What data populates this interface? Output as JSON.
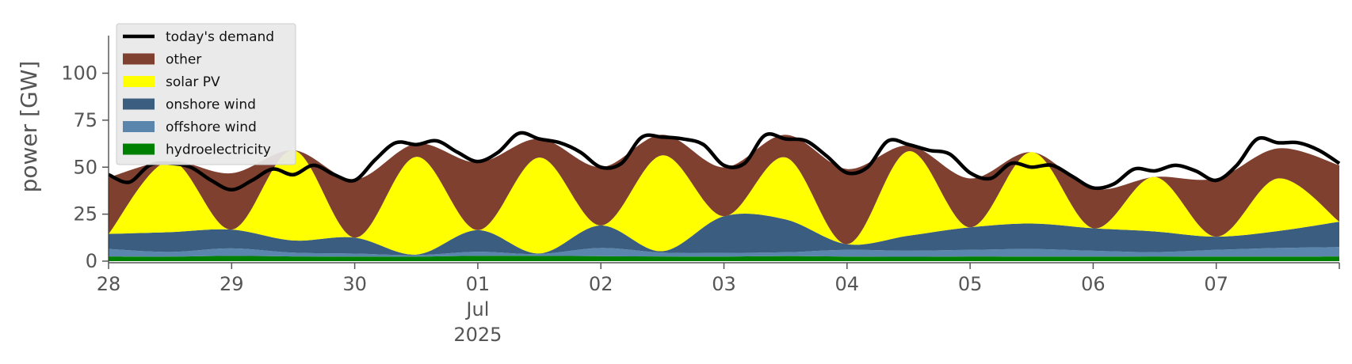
{
  "chart_data": {
    "type": "area",
    "title": "",
    "xlabel": "",
    "ylabel": "power [GW]",
    "ylim": [
      0,
      120
    ],
    "yticks": [
      0,
      25,
      50,
      75,
      100
    ],
    "xlim": [
      "2025-06-28T00:00",
      "2025-07-08T00:00"
    ],
    "x_ticks": [
      {
        "at": "2025-06-28",
        "label": "28"
      },
      {
        "at": "2025-06-29",
        "label": "29"
      },
      {
        "at": "2025-06-30",
        "label": "30"
      },
      {
        "at": "2025-07-01",
        "label": "01\nJul\n2025"
      },
      {
        "at": "2025-07-02",
        "label": "02"
      },
      {
        "at": "2025-07-03",
        "label": "03"
      },
      {
        "at": "2025-07-04",
        "label": "04"
      },
      {
        "at": "2025-07-05",
        "label": "05"
      },
      {
        "at": "2025-07-06",
        "label": "06"
      },
      {
        "at": "2025-07-07",
        "label": "07"
      }
    ],
    "grid": false,
    "stacked": true,
    "legend_position": "top-left",
    "series": [
      {
        "name": "hydroelectricity",
        "kind": "area",
        "color": "#008000",
        "values": [
          {
            "x": "2025-06-28T00:00",
            "y": 2.5
          },
          {
            "x": "2025-06-28T12:00",
            "y": 2.4
          },
          {
            "x": "2025-06-29T00:00",
            "y": 2.8
          },
          {
            "x": "2025-06-29T12:00",
            "y": 2.5
          },
          {
            "x": "2025-06-30T00:00",
            "y": 2.4
          },
          {
            "x": "2025-06-30T12:00",
            "y": 2.4
          },
          {
            "x": "2025-07-01T00:00",
            "y": 2.8
          },
          {
            "x": "2025-07-01T12:00",
            "y": 2.8
          },
          {
            "x": "2025-07-02T00:00",
            "y": 2.6
          },
          {
            "x": "2025-07-02T12:00",
            "y": 2.5
          },
          {
            "x": "2025-07-03T00:00",
            "y": 2.4
          },
          {
            "x": "2025-07-03T12:00",
            "y": 2.7
          },
          {
            "x": "2025-07-04T00:00",
            "y": 2.4
          },
          {
            "x": "2025-07-04T12:00",
            "y": 2.3
          },
          {
            "x": "2025-07-05T00:00",
            "y": 2.5
          },
          {
            "x": "2025-07-05T12:00",
            "y": 2.4
          },
          {
            "x": "2025-07-06T00:00",
            "y": 2.4
          },
          {
            "x": "2025-07-06T12:00",
            "y": 2.5
          },
          {
            "x": "2025-07-07T00:00",
            "y": 2.4
          },
          {
            "x": "2025-07-07T12:00",
            "y": 2.4
          },
          {
            "x": "2025-07-08T00:00",
            "y": 2.5
          }
        ]
      },
      {
        "name": "offshore wind",
        "kind": "area",
        "color": "#5a85ad",
        "values": [
          {
            "x": "2025-06-28T00:00",
            "y": 4
          },
          {
            "x": "2025-06-28T12:00",
            "y": 2.5
          },
          {
            "x": "2025-06-29T00:00",
            "y": 4
          },
          {
            "x": "2025-06-29T12:00",
            "y": 2
          },
          {
            "x": "2025-06-30T00:00",
            "y": 1.6
          },
          {
            "x": "2025-06-30T12:00",
            "y": 0.8
          },
          {
            "x": "2025-07-01T00:00",
            "y": 2.2
          },
          {
            "x": "2025-07-01T12:00",
            "y": 1
          },
          {
            "x": "2025-07-02T00:00",
            "y": 4.4
          },
          {
            "x": "2025-07-02T12:00",
            "y": 2
          },
          {
            "x": "2025-07-03T00:00",
            "y": 2
          },
          {
            "x": "2025-07-03T12:00",
            "y": 2
          },
          {
            "x": "2025-07-04T00:00",
            "y": 3.6
          },
          {
            "x": "2025-07-04T12:00",
            "y": 3.2
          },
          {
            "x": "2025-07-05T00:00",
            "y": 3.5
          },
          {
            "x": "2025-07-05T12:00",
            "y": 4.1
          },
          {
            "x": "2025-07-06T00:00",
            "y": 3.1
          },
          {
            "x": "2025-07-06T12:00",
            "y": 2.3
          },
          {
            "x": "2025-07-07T00:00",
            "y": 3.6
          },
          {
            "x": "2025-07-07T12:00",
            "y": 4.6
          },
          {
            "x": "2025-07-08T00:00",
            "y": 5
          }
        ]
      },
      {
        "name": "onshore wind",
        "kind": "area",
        "color": "#3b5e80",
        "values": [
          {
            "x": "2025-06-28T00:00",
            "y": 8
          },
          {
            "x": "2025-06-28T12:00",
            "y": 10.5
          },
          {
            "x": "2025-06-29T00:00",
            "y": 10
          },
          {
            "x": "2025-06-29T12:00",
            "y": 6.5
          },
          {
            "x": "2025-06-30T00:00",
            "y": 8.5
          },
          {
            "x": "2025-06-30T12:00",
            "y": 0.3
          },
          {
            "x": "2025-07-01T00:00",
            "y": 11.5
          },
          {
            "x": "2025-07-01T12:00",
            "y": 0.3
          },
          {
            "x": "2025-07-02T00:00",
            "y": 12
          },
          {
            "x": "2025-07-02T12:00",
            "y": 0.8
          },
          {
            "x": "2025-07-03T00:00",
            "y": 19.5
          },
          {
            "x": "2025-07-03T12:00",
            "y": 17.5
          },
          {
            "x": "2025-07-04T00:00",
            "y": 3
          },
          {
            "x": "2025-07-04T12:00",
            "y": 8
          },
          {
            "x": "2025-07-05T00:00",
            "y": 12
          },
          {
            "x": "2025-07-05T12:00",
            "y": 13.5
          },
          {
            "x": "2025-07-06T00:00",
            "y": 12
          },
          {
            "x": "2025-07-06T12:00",
            "y": 11
          },
          {
            "x": "2025-07-07T00:00",
            "y": 7
          },
          {
            "x": "2025-07-07T12:00",
            "y": 9
          },
          {
            "x": "2025-07-08T00:00",
            "y": 13.5
          }
        ]
      },
      {
        "name": "solar PV",
        "kind": "area",
        "color": "#ffff00",
        "values": [
          {
            "x": "2025-06-28T00:00",
            "y": 0
          },
          {
            "x": "2025-06-28T12:00",
            "y": 38
          },
          {
            "x": "2025-06-29T00:00",
            "y": 0
          },
          {
            "x": "2025-06-29T12:00",
            "y": 48
          },
          {
            "x": "2025-06-30T00:00",
            "y": 0
          },
          {
            "x": "2025-06-30T12:00",
            "y": 52
          },
          {
            "x": "2025-07-01T00:00",
            "y": 0
          },
          {
            "x": "2025-07-01T12:00",
            "y": 51
          },
          {
            "x": "2025-07-02T00:00",
            "y": 0
          },
          {
            "x": "2025-07-02T12:00",
            "y": 51
          },
          {
            "x": "2025-07-03T00:00",
            "y": 0
          },
          {
            "x": "2025-07-03T12:00",
            "y": 33
          },
          {
            "x": "2025-07-04T00:00",
            "y": 0
          },
          {
            "x": "2025-07-04T12:00",
            "y": 45
          },
          {
            "x": "2025-07-05T00:00",
            "y": 0
          },
          {
            "x": "2025-07-05T12:00",
            "y": 38
          },
          {
            "x": "2025-07-06T00:00",
            "y": 0
          },
          {
            "x": "2025-07-06T12:00",
            "y": 29
          },
          {
            "x": "2025-07-07T00:00",
            "y": 0
          },
          {
            "x": "2025-07-07T12:00",
            "y": 28
          },
          {
            "x": "2025-07-08T00:00",
            "y": 0
          }
        ]
      },
      {
        "name": "other",
        "kind": "area",
        "color": "#804030",
        "values": [
          {
            "x": "2025-06-28T00:00",
            "y": 30
          },
          {
            "x": "2025-06-28T12:00",
            "y": 0
          },
          {
            "x": "2025-06-29T00:00",
            "y": 30
          },
          {
            "x": "2025-06-29T12:00",
            "y": 0
          },
          {
            "x": "2025-06-30T00:00",
            "y": 31
          },
          {
            "x": "2025-06-30T12:00",
            "y": 7
          },
          {
            "x": "2025-07-01T00:00",
            "y": 36
          },
          {
            "x": "2025-07-01T12:00",
            "y": 10
          },
          {
            "x": "2025-07-02T00:00",
            "y": 31
          },
          {
            "x": "2025-07-02T12:00",
            "y": 11
          },
          {
            "x": "2025-07-03T00:00",
            "y": 26
          },
          {
            "x": "2025-07-03T12:00",
            "y": 12
          },
          {
            "x": "2025-07-04T00:00",
            "y": 40
          },
          {
            "x": "2025-07-04T12:00",
            "y": 3
          },
          {
            "x": "2025-07-05T00:00",
            "y": 26
          },
          {
            "x": "2025-07-05T12:00",
            "y": 0
          },
          {
            "x": "2025-07-06T00:00",
            "y": 21
          },
          {
            "x": "2025-07-06T12:00",
            "y": 0
          },
          {
            "x": "2025-07-07T00:00",
            "y": 31
          },
          {
            "x": "2025-07-07T12:00",
            "y": 16
          },
          {
            "x": "2025-07-08T00:00",
            "y": 30
          }
        ]
      },
      {
        "name": "today's demand",
        "kind": "line",
        "color": "#000000",
        "values": [
          {
            "x": "2025-06-28T00:00",
            "y": 46
          },
          {
            "x": "2025-06-28T04:00",
            "y": 42
          },
          {
            "x": "2025-06-28T08:00",
            "y": 51
          },
          {
            "x": "2025-06-28T12:00",
            "y": 52
          },
          {
            "x": "2025-06-28T16:00",
            "y": 50
          },
          {
            "x": "2025-06-28T20:00",
            "y": 43
          },
          {
            "x": "2025-06-29T00:00",
            "y": 38
          },
          {
            "x": "2025-06-29T04:00",
            "y": 43
          },
          {
            "x": "2025-06-29T08:00",
            "y": 49
          },
          {
            "x": "2025-06-29T12:00",
            "y": 46
          },
          {
            "x": "2025-06-29T16:00",
            "y": 51
          },
          {
            "x": "2025-06-29T20:00",
            "y": 46
          },
          {
            "x": "2025-06-30T00:00",
            "y": 43
          },
          {
            "x": "2025-06-30T04:00",
            "y": 54
          },
          {
            "x": "2025-06-30T08:00",
            "y": 63
          },
          {
            "x": "2025-06-30T12:00",
            "y": 62
          },
          {
            "x": "2025-06-30T16:00",
            "y": 64
          },
          {
            "x": "2025-06-30T20:00",
            "y": 58
          },
          {
            "x": "2025-07-01T00:00",
            "y": 53
          },
          {
            "x": "2025-07-01T04:00",
            "y": 58
          },
          {
            "x": "2025-07-01T08:00",
            "y": 68
          },
          {
            "x": "2025-07-01T12:00",
            "y": 65
          },
          {
            "x": "2025-07-01T16:00",
            "y": 63
          },
          {
            "x": "2025-07-01T20:00",
            "y": 58
          },
          {
            "x": "2025-07-02T00:00",
            "y": 50
          },
          {
            "x": "2025-07-02T04:00",
            "y": 52
          },
          {
            "x": "2025-07-02T08:00",
            "y": 66
          },
          {
            "x": "2025-07-02T12:00",
            "y": 66
          },
          {
            "x": "2025-07-02T16:00",
            "y": 65
          },
          {
            "x": "2025-07-02T20:00",
            "y": 62
          },
          {
            "x": "2025-07-03T00:00",
            "y": 51
          },
          {
            "x": "2025-07-03T04:00",
            "y": 52
          },
          {
            "x": "2025-07-03T08:00",
            "y": 67
          },
          {
            "x": "2025-07-03T12:00",
            "y": 65
          },
          {
            "x": "2025-07-03T16:00",
            "y": 64
          },
          {
            "x": "2025-07-03T20:00",
            "y": 56
          },
          {
            "x": "2025-07-04T00:00",
            "y": 47
          },
          {
            "x": "2025-07-04T04:00",
            "y": 50
          },
          {
            "x": "2025-07-04T08:00",
            "y": 64
          },
          {
            "x": "2025-07-04T12:00",
            "y": 62
          },
          {
            "x": "2025-07-04T16:00",
            "y": 59
          },
          {
            "x": "2025-07-04T20:00",
            "y": 57
          },
          {
            "x": "2025-07-05T00:00",
            "y": 47
          },
          {
            "x": "2025-07-05T04:00",
            "y": 44
          },
          {
            "x": "2025-07-05T08:00",
            "y": 52
          },
          {
            "x": "2025-07-05T12:00",
            "y": 50
          },
          {
            "x": "2025-07-05T16:00",
            "y": 51
          },
          {
            "x": "2025-07-05T20:00",
            "y": 45
          },
          {
            "x": "2025-07-06T00:00",
            "y": 39
          },
          {
            "x": "2025-07-06T04:00",
            "y": 41
          },
          {
            "x": "2025-07-06T08:00",
            "y": 49
          },
          {
            "x": "2025-07-06T12:00",
            "y": 48
          },
          {
            "x": "2025-07-06T16:00",
            "y": 51
          },
          {
            "x": "2025-07-06T20:00",
            "y": 48
          },
          {
            "x": "2025-07-07T00:00",
            "y": 43
          },
          {
            "x": "2025-07-07T04:00",
            "y": 51
          },
          {
            "x": "2025-07-07T08:00",
            "y": 65
          },
          {
            "x": "2025-07-07T12:00",
            "y": 63
          },
          {
            "x": "2025-07-07T16:00",
            "y": 63
          },
          {
            "x": "2025-07-07T20:00",
            "y": 59
          },
          {
            "x": "2025-07-08T00:00",
            "y": 52
          }
        ]
      }
    ],
    "legend": [
      {
        "name": "today's demand",
        "kind": "line",
        "color": "#000000"
      },
      {
        "name": "other",
        "kind": "area",
        "color": "#804030"
      },
      {
        "name": "solar PV",
        "kind": "area",
        "color": "#ffff00"
      },
      {
        "name": "onshore wind",
        "kind": "area",
        "color": "#3b5e80"
      },
      {
        "name": "offshore wind",
        "kind": "area",
        "color": "#5a85ad"
      },
      {
        "name": "hydroelectricity",
        "kind": "area",
        "color": "#008000"
      }
    ]
  }
}
